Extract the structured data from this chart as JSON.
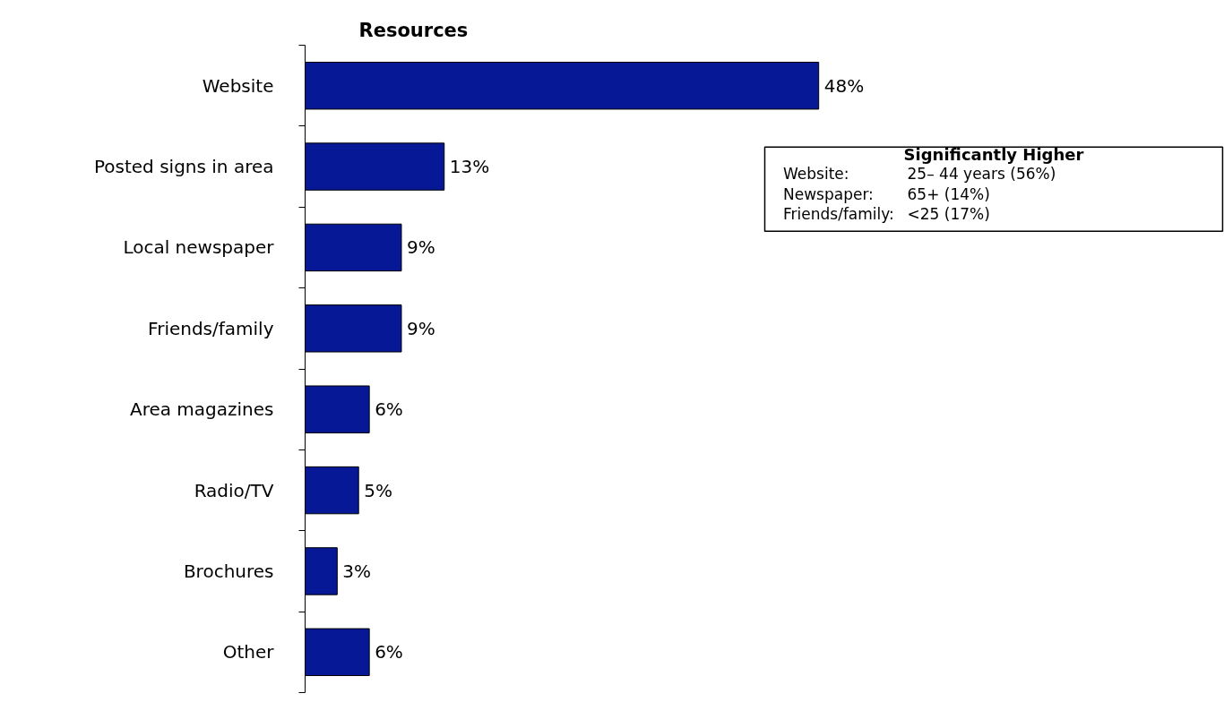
{
  "chart_data": {
    "type": "bar",
    "orientation": "horizontal",
    "title": "Resources",
    "categories": [
      "Website",
      "Posted signs in area",
      "Local newspaper",
      "Friends/family",
      "Area magazines",
      "Radio/TV",
      "Brochures",
      "Other"
    ],
    "values": [
      48,
      13,
      9,
      9,
      6,
      5,
      3,
      6
    ],
    "value_labels": [
      "48%",
      "13%",
      "9%",
      "9%",
      "6%",
      "5%",
      "3%",
      "6%"
    ],
    "color": "#061896",
    "grid": false,
    "annotations": [
      "Significantly Higher",
      "Website:",
      "25– 44 years (56%)",
      "Newspaper:",
      "65+ (14%)",
      "Friends/family:",
      "<25 (17%)"
    ]
  }
}
